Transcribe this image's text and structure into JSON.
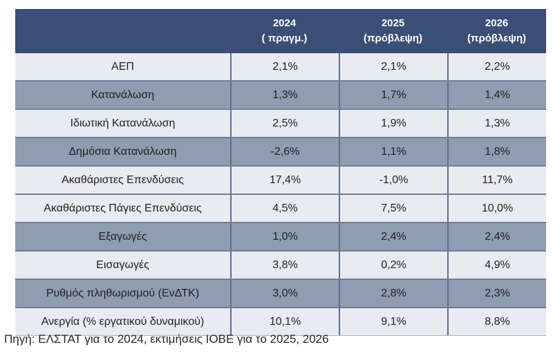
{
  "chart_data": {
    "type": "table",
    "header": {
      "col_labels": [
        {
          "year": "2024",
          "note": "( πραγμ.)"
        },
        {
          "year": "2025",
          "note": "(πρόβλεψη)"
        },
        {
          "year": "2026",
          "note": "(πρόβλεψη)"
        }
      ]
    },
    "rows": [
      {
        "label": "ΑΕΠ",
        "values": [
          "2,1%",
          "2,1%",
          "2,2%"
        ],
        "shade": "light"
      },
      {
        "label": "Κατανάλωση",
        "values": [
          "1,3%",
          "1,7%",
          "1,4%"
        ],
        "shade": "dark"
      },
      {
        "label": "Ιδιωτική Κατανάλωση",
        "values": [
          "2,5%",
          "1,9%",
          "1,3%"
        ],
        "shade": "light"
      },
      {
        "label": "Δημόσια Κατανάλωση",
        "values": [
          "-2,6%",
          "1,1%",
          "1,8%"
        ],
        "shade": "dark"
      },
      {
        "label": "Ακαθάριστες Επενδύσεις",
        "values": [
          "17,4%",
          "-1,0%",
          "11,7%"
        ],
        "shade": "light"
      },
      {
        "label": "Ακαθάριστες Πάγιες Επενδύσεις",
        "values": [
          "4,5%",
          "7,5%",
          "10,0%"
        ],
        "shade": "light"
      },
      {
        "label": "Εξαγωγές",
        "values": [
          "1,0%",
          "2,4%",
          "2,4%"
        ],
        "shade": "dark"
      },
      {
        "label": "Εισαγωγές",
        "values": [
          "3,8%",
          "0,2%",
          "4,9%"
        ],
        "shade": "light"
      },
      {
        "label": "Ρυθμός πληθωρισμού (ΕνΔΤΚ)",
        "values": [
          "3,0%",
          "2,8%",
          "2,3%"
        ],
        "shade": "dark"
      },
      {
        "label": "Ανεργία (% εργατικού δυναμικού)",
        "values": [
          "10,1%",
          "9,1%",
          "8,8%"
        ],
        "shade": "light"
      }
    ],
    "source_note": "Πηγή: ΕΛΣΤΑΤ για το 2024, εκτιμήσεις ΙΟΒΕ για το 2025, 2026"
  },
  "colors": {
    "header_bg": "#3A4E76",
    "header_text": "#FFFFFF",
    "row_light_bg": "#E9EBF1",
    "row_dark_bg": "#8F9CB2",
    "row_text": "#212121",
    "border_horizontal": "#6F7E99",
    "border_vertical": "#5D6E8C"
  }
}
